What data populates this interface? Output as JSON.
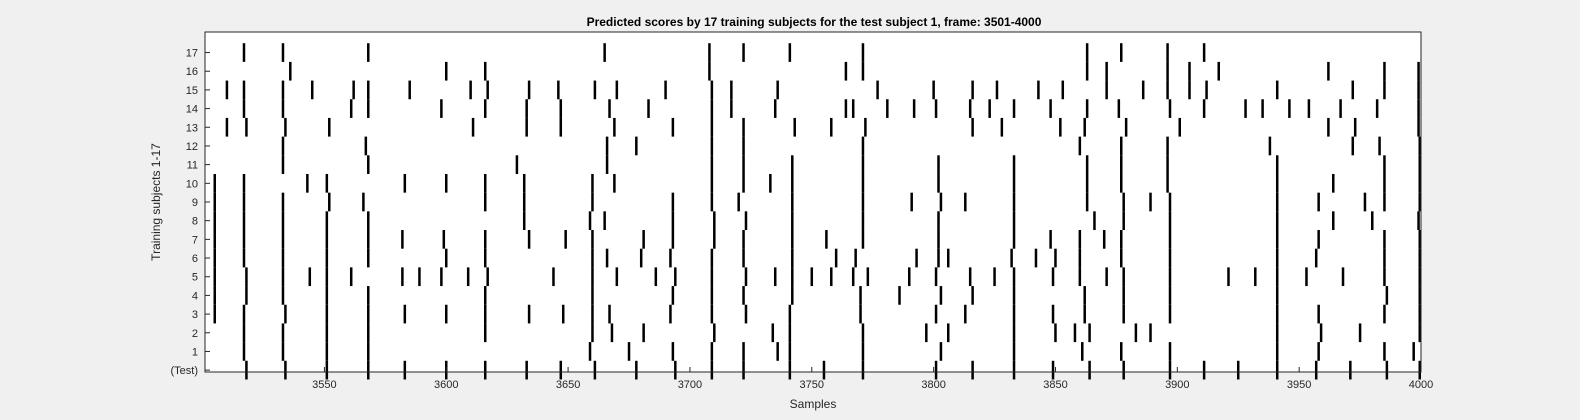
{
  "chart_data": {
    "type": "raster",
    "title": "Predicted scores by 17 training subjects for the test subject 1, frame: 3501-4000",
    "xlabel": "Samples",
    "ylabel": "Training subjects 1-17",
    "xlim": [
      3501,
      4000
    ],
    "xticks": [
      3550,
      3600,
      3650,
      3700,
      3750,
      3800,
      3850,
      3900,
      3950,
      4000
    ],
    "row_labels": [
      "17",
      "16",
      "15",
      "14",
      "13",
      "12",
      "11",
      "10",
      "9",
      "8",
      "7",
      "6",
      "5",
      "4",
      "3",
      "2",
      "1",
      "(Test)"
    ],
    "grid": false,
    "rows": [
      {
        "label": "17",
        "events": [
          3517,
          3533,
          3568,
          3665,
          3708,
          3722,
          3741,
          3771,
          3863,
          3877,
          3896,
          3911
        ]
      },
      {
        "label": "16",
        "events": [
          3536,
          3600,
          3616,
          3708,
          3764,
          3771,
          3863,
          3871,
          3896,
          3905,
          3917,
          3962,
          3985,
          3999
        ]
      },
      {
        "label": "15",
        "events": [
          3510,
          3517,
          3533,
          3545,
          3562,
          3568,
          3585,
          3610,
          3617,
          3634,
          3646,
          3661,
          3670,
          3690,
          3709,
          3717,
          3736,
          3777,
          3800,
          3816,
          3826,
          3843,
          3853,
          3871,
          3886,
          3896,
          3905,
          3912,
          3941,
          3972,
          3985,
          3999
        ]
      },
      {
        "label": "14",
        "events": [
          3517,
          3533,
          3561,
          3568,
          3598,
          3616,
          3633,
          3647,
          3667,
          3683,
          3709,
          3717,
          3735,
          3764,
          3767,
          3781,
          3792,
          3801,
          3815,
          3823,
          3833,
          3848,
          3863,
          3876,
          3897,
          3911,
          3928,
          3935,
          3946,
          3954,
          3967,
          3982,
          3999
        ]
      },
      {
        "label": "13",
        "events": [
          3510,
          3518,
          3534,
          3552,
          3611,
          3633,
          3647,
          3669,
          3693,
          3709,
          3722,
          3743,
          3758,
          3772,
          3816,
          3828,
          3852,
          3862,
          3879,
          3901,
          3962,
          3973,
          3999
        ]
      },
      {
        "label": "12",
        "events": [
          3533,
          3567,
          3666,
          3678,
          3709,
          3722,
          3771,
          3860,
          3877,
          3896,
          3938,
          3972,
          3983,
          4000
        ]
      },
      {
        "label": "11",
        "events": [
          3533,
          3568,
          3629,
          3666,
          3709,
          3722,
          3742,
          3771,
          3802,
          3833,
          3863,
          3877,
          3896,
          3941,
          3985,
          4000
        ]
      },
      {
        "label": "10",
        "events": [
          3505,
          3517,
          3543,
          3551,
          3583,
          3600,
          3616,
          3632,
          3660,
          3669,
          3709,
          3722,
          3733,
          3742,
          3771,
          3802,
          3833,
          3863,
          3877,
          3896,
          3941,
          3964,
          3985,
          4000
        ]
      },
      {
        "label": "9",
        "events": [
          3505,
          3517,
          3533,
          3552,
          3566,
          3616,
          3632,
          3660,
          3693,
          3709,
          3720,
          3742,
          3771,
          3791,
          3803,
          3813,
          3833,
          3863,
          3878,
          3889,
          3897,
          3941,
          3958,
          3977,
          3985,
          4000
        ]
      },
      {
        "label": "8",
        "events": [
          3505,
          3517,
          3533,
          3551,
          3568,
          3632,
          3659,
          3665,
          3693,
          3710,
          3723,
          3742,
          3771,
          3802,
          3833,
          3866,
          3878,
          3897,
          3941,
          3964,
          3980,
          3999
        ]
      },
      {
        "label": "7",
        "events": [
          3505,
          3517,
          3533,
          3551,
          3568,
          3582,
          3599,
          3616,
          3634,
          3649,
          3660,
          3681,
          3693,
          3710,
          3722,
          3742,
          3756,
          3771,
          3802,
          3833,
          3848,
          3860,
          3870,
          3877,
          3897,
          3941,
          3958,
          3985,
          4000
        ]
      },
      {
        "label": "6",
        "events": [
          3505,
          3517,
          3533,
          3551,
          3568,
          3600,
          3616,
          3660,
          3666,
          3680,
          3692,
          3709,
          3722,
          3742,
          3760,
          3768,
          3793,
          3802,
          3806,
          3832,
          3842,
          3850,
          3860,
          3877,
          3897,
          3941,
          3957,
          3985,
          4000
        ]
      },
      {
        "label": "5",
        "events": [
          3505,
          3518,
          3533,
          3544,
          3551,
          3561,
          3582,
          3589,
          3598,
          3609,
          3617,
          3644,
          3660,
          3670,
          3686,
          3694,
          3709,
          3723,
          3735,
          3742,
          3750,
          3758,
          3767,
          3773,
          3790,
          3801,
          3815,
          3825,
          3833,
          3849,
          3860,
          3871,
          3878,
          3897,
          3921,
          3932,
          3941,
          3953,
          3968,
          3985,
          4000
        ]
      },
      {
        "label": "4",
        "events": [
          3505,
          3518,
          3533,
          3551,
          3568,
          3616,
          3660,
          3693,
          3709,
          3722,
          3742,
          3770,
          3786,
          3803,
          3816,
          3833,
          3862,
          3878,
          3897,
          3941,
          3986,
          4000
        ]
      },
      {
        "label": "3",
        "events": [
          3505,
          3517,
          3534,
          3551,
          3568,
          3583,
          3600,
          3616,
          3634,
          3648,
          3660,
          3667,
          3692,
          3709,
          3723,
          3741,
          3770,
          3801,
          3813,
          3833,
          3849,
          3862,
          3878,
          3897,
          3941,
          3958,
          3985,
          4000
        ]
      },
      {
        "label": "2",
        "events": [
          3517,
          3533,
          3551,
          3568,
          3616,
          3660,
          3668,
          3681,
          3710,
          3734,
          3741,
          3771,
          3797,
          3806,
          3833,
          3850,
          3858,
          3864,
          3883,
          3889,
          3941,
          3959,
          3975,
          4000
        ]
      },
      {
        "label": "1",
        "events": [
          3517,
          3533,
          3551,
          3568,
          3659,
          3675,
          3693,
          3709,
          3722,
          3736,
          3741,
          3771,
          3803,
          3833,
          3861,
          3877,
          3897,
          3941,
          3958,
          3985,
          3997
        ]
      },
      {
        "label": "(Test)",
        "events": [
          3518,
          3534,
          3551,
          3568,
          3583,
          3600,
          3616,
          3633,
          3647,
          3661,
          3678,
          3694,
          3709,
          3722,
          3741,
          3755,
          3771,
          3801,
          3816,
          3833,
          3849,
          3864,
          3878,
          3897,
          3911,
          3925,
          3941,
          3957,
          3971,
          3986,
          4000
        ]
      }
    ]
  }
}
